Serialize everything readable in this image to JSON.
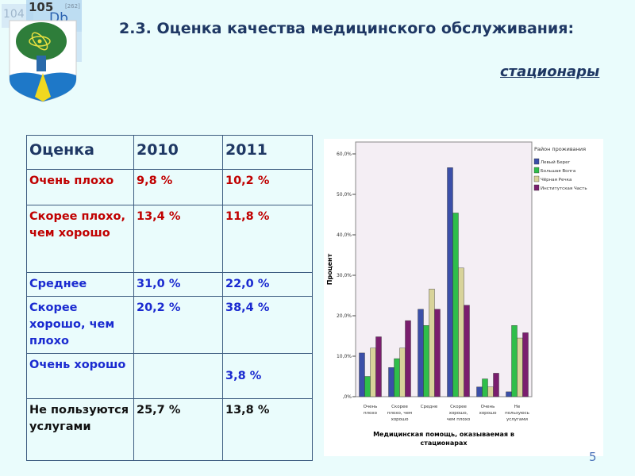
{
  "logo": {
    "text_104": "104",
    "text_105": "105",
    "text_db": "Db",
    "text_262": "[262]"
  },
  "header": {
    "title": "2.3. Оценка качества медицинского обслуживания:",
    "subtitle": "стационары"
  },
  "table": {
    "headers": [
      "Оценка",
      "2010",
      "2011"
    ],
    "rows": [
      {
        "label": "Очень плохо",
        "y2010": "9,8 %",
        "y2011": "10,2 %",
        "color": "red"
      },
      {
        "label": "Скорее плохо, чем хорошо",
        "y2010": "13,4 %",
        "y2011": "11,8 %",
        "color": "red"
      },
      {
        "label": "Среднее",
        "y2010": "31,0 %",
        "y2011": "22,0 %",
        "color": "blue"
      },
      {
        "label": "Скорее хорошо, чем плохо",
        "y2010": "20,2 %",
        "y2011": "38,4 %",
        "color": "blue"
      },
      {
        "label": "Очень хорошо",
        "y2010": "",
        "y2011": "3,8 %",
        "color": "blue"
      },
      {
        "label": "Не пользуются услугами",
        "y2010": "25,7 %",
        "y2011": "13,8 %",
        "color": "black"
      }
    ]
  },
  "chart_data": {
    "type": "bar",
    "ylabel": "Процент",
    "xlabel": "Медицинская помощь, оказываемая в стационарах",
    "ylim": [
      0,
      60
    ],
    "yticks": [
      ",0%",
      "10,0%",
      "20,0%",
      "30,0%",
      "40,0%",
      "50,0%",
      "60,0%"
    ],
    "categories": [
      [
        "Очень",
        "плохо"
      ],
      [
        "Скорее",
        "плохо, чем",
        "хорошо"
      ],
      [
        "Средне"
      ],
      [
        "Скорее",
        "хорошо,",
        "чем плохо"
      ],
      [
        "Очень",
        "хорошо"
      ],
      [
        "Не",
        "пользуюсь",
        "услугами"
      ]
    ],
    "legend_title": "Район проживания",
    "legend_position": "top-right",
    "series": [
      {
        "name": "Левый Берег",
        "color": "#3b4fa8",
        "values": [
          10.8,
          7.2,
          21.6,
          56.6,
          2.4,
          1.2
        ]
      },
      {
        "name": "Большая Волга",
        "color": "#2fbe4a",
        "values": [
          5.0,
          9.4,
          17.6,
          45.4,
          4.4,
          17.6
        ]
      },
      {
        "name": "Чёрная Речка",
        "color": "#d8d39a",
        "values": [
          12.0,
          12.0,
          26.6,
          31.8,
          2.4,
          14.5
        ]
      },
      {
        "name": "Институтская Часть",
        "color": "#7a1e6e",
        "values": [
          14.8,
          18.8,
          21.6,
          22.6,
          5.8,
          15.8
        ]
      }
    ]
  },
  "page_number": "5"
}
